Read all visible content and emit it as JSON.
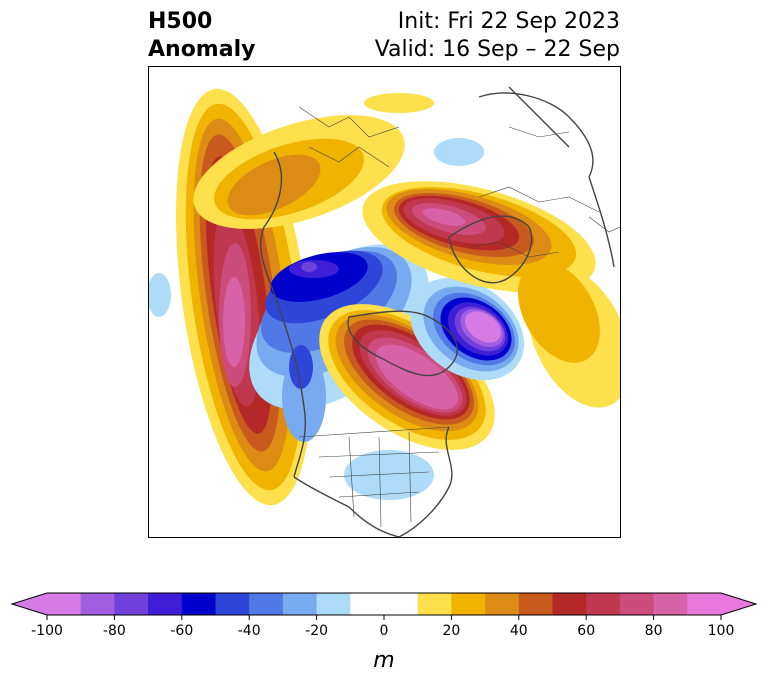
{
  "title": {
    "left_line1": "H500",
    "left_line2": "Anomaly",
    "right_line1": "Init: Fri 22 Sep 2023",
    "right_line2": "Valid: 16 Sep – 22 Sep"
  },
  "colorbar": {
    "label": "m",
    "ticks": [
      "-100",
      "-80",
      "-60",
      "-40",
      "-20",
      "0",
      "20",
      "40",
      "60",
      "80",
      "100"
    ],
    "bins": [
      {
        "min": -100,
        "max": -90,
        "color": "#d67ae6"
      },
      {
        "min": -90,
        "max": -80,
        "color": "#a15ee0"
      },
      {
        "min": -80,
        "max": -70,
        "color": "#7040dc"
      },
      {
        "min": -70,
        "max": -60,
        "color": "#3e1ed6"
      },
      {
        "min": -60,
        "max": -50,
        "color": "#0000cc"
      },
      {
        "min": -50,
        "max": -40,
        "color": "#2e46d8"
      },
      {
        "min": -40,
        "max": -30,
        "color": "#5078e6"
      },
      {
        "min": -30,
        "max": -20,
        "color": "#78aaf0"
      },
      {
        "min": -20,
        "max": -10,
        "color": "#aedcf8"
      },
      {
        "min": -10,
        "max": 10,
        "color": "#ffffff"
      },
      {
        "min": 10,
        "max": 20,
        "color": "#fee04c"
      },
      {
        "min": 20,
        "max": 30,
        "color": "#f0b400"
      },
      {
        "min": 30,
        "max": 40,
        "color": "#dc8c14"
      },
      {
        "min": 40,
        "max": 50,
        "color": "#c85a1e"
      },
      {
        "min": 50,
        "max": 60,
        "color": "#b42828"
      },
      {
        "min": 60,
        "max": 70,
        "color": "#c0384e"
      },
      {
        "min": 70,
        "max": 80,
        "color": "#cc4c7c"
      },
      {
        "min": 80,
        "max": 90,
        "color": "#d862a8"
      },
      {
        "min": 90,
        "max": 100,
        "color": "#e878dc"
      }
    ],
    "extend_low_color": "#d67ae6",
    "extend_high_color": "#e878dc"
  },
  "colors": {
    "coastline": "#444444",
    "frame": "#000000"
  }
}
